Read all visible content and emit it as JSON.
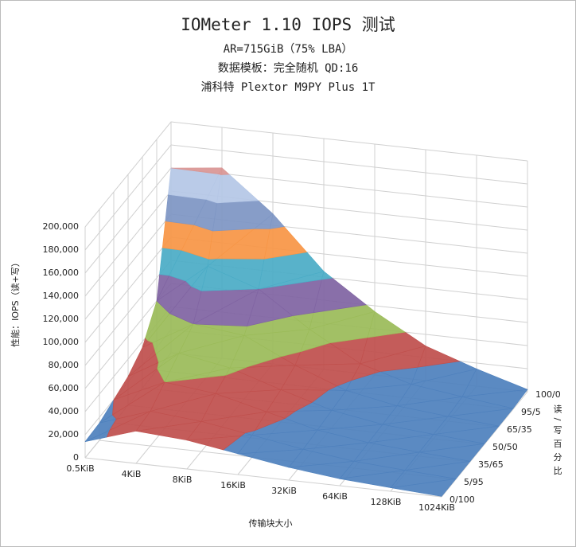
{
  "chart_data": {
    "type": "surface3d",
    "title": "IOMeter 1.10 IOPS 测试",
    "subtitles": [
      "AR=715GiB（75% LBA）",
      "数据模板：完全随机 QD:16",
      "浦科特 Plextor M9PY Plus 1T"
    ],
    "y_label": "性能：IOPS（读+写）",
    "x_label": "传输块大小",
    "depth_label": "读/写百分比",
    "categories": [
      "0.5KiB",
      "4KiB",
      "8KiB",
      "16KiB",
      "32KiB",
      "64KiB",
      "128KiB",
      "1024KiB"
    ],
    "series": [
      {
        "name": "0/100",
        "values": [
          14000,
          28000,
          25000,
          18000,
          11000,
          6000,
          3000,
          400
        ]
      },
      {
        "name": "5/95",
        "values": [
          15000,
          30000,
          26000,
          19000,
          11500,
          6000,
          3000,
          400
        ]
      },
      {
        "name": "35/65",
        "values": [
          20000,
          40000,
          35000,
          24000,
          13000,
          7000,
          3500,
          450
        ]
      },
      {
        "name": "50/50",
        "values": [
          25000,
          50000,
          42000,
          28000,
          15000,
          7500,
          3800,
          480
        ]
      },
      {
        "name": "65/35",
        "values": [
          35000,
          60000,
          55000,
          34000,
          17000,
          8500,
          4200,
          520
        ]
      },
      {
        "name": "95/5",
        "values": [
          60000,
          95000,
          80000,
          50000,
          25000,
          12000,
          6000,
          700
        ]
      },
      {
        "name": "100/0",
        "values": [
          160000,
          165000,
          130000,
          85000,
          55000,
          30000,
          15000,
          1900
        ]
      }
    ],
    "ylim": [
      0,
      200000
    ],
    "yticks": [
      0,
      {
        "value": 20000,
        "label": "20,000"
      },
      {
        "value": 40000,
        "label": "40,000"
      },
      {
        "value": 60000,
        "label": "60,000"
      },
      {
        "value": 80000,
        "label": "80,000"
      },
      {
        "value": 100000,
        "label": "100,000"
      },
      {
        "value": 120000,
        "label": "120,000"
      },
      {
        "value": 140000,
        "label": "140,000"
      },
      {
        "value": 160000,
        "label": "160,000"
      },
      {
        "value": 180000,
        "label": "180,000"
      },
      {
        "value": 200000,
        "label": "200,000"
      }
    ],
    "band_colors": [
      "#4f81bd",
      "#c0504d",
      "#9bbb59",
      "#8064a2",
      "#4bacc6",
      "#f79646",
      "#7e96c4",
      "#b5c7e6",
      "#d99694",
      "#c3d69b"
    ],
    "grid": true
  }
}
